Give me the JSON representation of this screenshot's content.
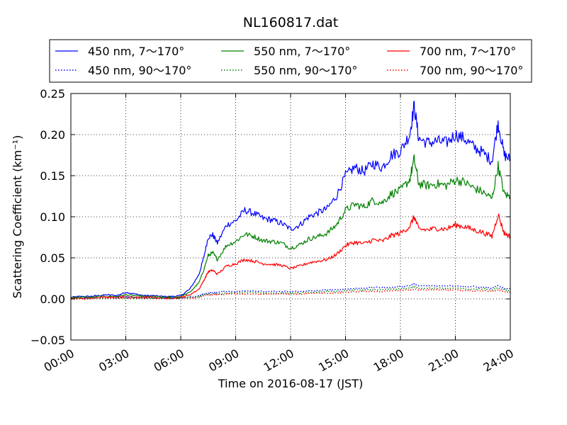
{
  "chart_data": {
    "type": "line",
    "title": "NL160817.dat",
    "xlabel": "Time on 2016-08-17 (JST)",
    "ylabel": "Scattering Coefficient (km⁻¹)",
    "xlim": [
      "2016-08-17 00:00",
      "2016-08-18 00:00"
    ],
    "ylim": [
      -0.05,
      0.25
    ],
    "xticks": [
      "00:00",
      "03:00",
      "06:00",
      "09:00",
      "12:00",
      "15:00",
      "18:00",
      "21:00",
      "24:00"
    ],
    "yticks": [
      "−0.05",
      "0.00",
      "0.05",
      "0.10",
      "0.15",
      "0.20",
      "0.25"
    ],
    "grid": true,
    "legend_position": "top",
    "x": [
      "00:00",
      "00:30",
      "01:00",
      "01:30",
      "02:00",
      "02:30",
      "03:00",
      "03:30",
      "04:00",
      "04:30",
      "05:00",
      "05:30",
      "06:00",
      "06:30",
      "07:00",
      "07:15",
      "07:30",
      "07:45",
      "08:00",
      "08:30",
      "09:00",
      "09:30",
      "10:00",
      "10:30",
      "11:00",
      "11:30",
      "12:00",
      "12:30",
      "13:00",
      "13:30",
      "14:00",
      "14:30",
      "15:00",
      "15:30",
      "16:00",
      "16:30",
      "17:00",
      "17:30",
      "18:00",
      "18:30",
      "18:45",
      "19:00",
      "19:30",
      "20:00",
      "20:30",
      "21:00",
      "21:30",
      "22:00",
      "22:30",
      "23:00",
      "23:20",
      "23:40",
      "24:00"
    ],
    "series": [
      {
        "name": "450 nm, 7～170°",
        "color": "#0000ff",
        "style": "solid",
        "values": [
          0.002,
          0.003,
          0.003,
          0.004,
          0.005,
          0.004,
          0.008,
          0.006,
          0.004,
          0.004,
          0.003,
          0.003,
          0.004,
          0.012,
          0.03,
          0.05,
          0.075,
          0.078,
          0.068,
          0.09,
          0.095,
          0.108,
          0.104,
          0.098,
          0.096,
          0.092,
          0.085,
          0.09,
          0.1,
          0.105,
          0.11,
          0.125,
          0.15,
          0.16,
          0.155,
          0.165,
          0.16,
          0.175,
          0.18,
          0.2,
          0.235,
          0.195,
          0.19,
          0.192,
          0.19,
          0.2,
          0.195,
          0.185,
          0.178,
          0.168,
          0.215,
          0.175,
          0.17
        ]
      },
      {
        "name": "550 nm, 7～170°",
        "color": "#008000",
        "style": "solid",
        "values": [
          0.002,
          0.002,
          0.002,
          0.003,
          0.003,
          0.003,
          0.005,
          0.004,
          0.003,
          0.003,
          0.002,
          0.002,
          0.003,
          0.008,
          0.02,
          0.035,
          0.053,
          0.056,
          0.048,
          0.065,
          0.07,
          0.079,
          0.076,
          0.071,
          0.07,
          0.068,
          0.062,
          0.066,
          0.073,
          0.076,
          0.08,
          0.09,
          0.108,
          0.115,
          0.112,
          0.12,
          0.117,
          0.128,
          0.132,
          0.145,
          0.17,
          0.14,
          0.138,
          0.14,
          0.138,
          0.145,
          0.142,
          0.135,
          0.13,
          0.122,
          0.162,
          0.128,
          0.124
        ]
      },
      {
        "name": "700 nm, 7～170°",
        "color": "#ff0000",
        "style": "solid",
        "values": [
          0.001,
          0.001,
          0.001,
          0.002,
          0.002,
          0.002,
          0.003,
          0.002,
          0.002,
          0.002,
          0.001,
          0.001,
          0.002,
          0.005,
          0.012,
          0.022,
          0.033,
          0.035,
          0.03,
          0.04,
          0.043,
          0.048,
          0.046,
          0.043,
          0.042,
          0.041,
          0.037,
          0.04,
          0.044,
          0.046,
          0.048,
          0.054,
          0.065,
          0.069,
          0.067,
          0.072,
          0.07,
          0.077,
          0.08,
          0.088,
          0.1,
          0.085,
          0.084,
          0.086,
          0.085,
          0.09,
          0.088,
          0.084,
          0.081,
          0.076,
          0.103,
          0.08,
          0.076
        ]
      },
      {
        "name": "450 nm, 90～170°",
        "color": "#0000ff",
        "style": "dotted",
        "values": [
          0.001,
          0.001,
          0.001,
          0.001,
          0.001,
          0.001,
          0.002,
          0.002,
          0.001,
          0.001,
          0.001,
          0.001,
          0.001,
          0.002,
          0.004,
          0.006,
          0.007,
          0.008,
          0.008,
          0.009,
          0.009,
          0.01,
          0.01,
          0.009,
          0.009,
          0.009,
          0.009,
          0.009,
          0.01,
          0.01,
          0.011,
          0.011,
          0.012,
          0.013,
          0.013,
          0.014,
          0.014,
          0.014,
          0.015,
          0.016,
          0.018,
          0.016,
          0.016,
          0.016,
          0.016,
          0.016,
          0.015,
          0.015,
          0.014,
          0.013,
          0.016,
          0.013,
          0.012
        ]
      },
      {
        "name": "550 nm, 90～170°",
        "color": "#008000",
        "style": "dotted",
        "values": [
          0.001,
          0.001,
          0.001,
          0.001,
          0.001,
          0.001,
          0.001,
          0.001,
          0.001,
          0.001,
          0.001,
          0.001,
          0.001,
          0.002,
          0.003,
          0.005,
          0.006,
          0.006,
          0.006,
          0.007,
          0.007,
          0.008,
          0.008,
          0.007,
          0.007,
          0.007,
          0.007,
          0.007,
          0.008,
          0.008,
          0.009,
          0.009,
          0.01,
          0.011,
          0.011,
          0.011,
          0.011,
          0.012,
          0.012,
          0.013,
          0.015,
          0.013,
          0.013,
          0.013,
          0.013,
          0.013,
          0.012,
          0.012,
          0.012,
          0.011,
          0.013,
          0.011,
          0.01
        ]
      },
      {
        "name": "700 nm, 90～170°",
        "color": "#ff0000",
        "style": "dotted",
        "values": [
          0.0,
          0.0,
          0.0,
          0.001,
          0.001,
          0.001,
          0.001,
          0.001,
          0.001,
          0.001,
          0.0,
          0.0,
          0.001,
          0.001,
          0.002,
          0.004,
          0.005,
          0.005,
          0.005,
          0.006,
          0.006,
          0.006,
          0.006,
          0.006,
          0.006,
          0.006,
          0.006,
          0.006,
          0.007,
          0.007,
          0.007,
          0.007,
          0.008,
          0.009,
          0.009,
          0.009,
          0.009,
          0.01,
          0.01,
          0.011,
          0.012,
          0.011,
          0.011,
          0.011,
          0.011,
          0.011,
          0.01,
          0.01,
          0.01,
          0.009,
          0.011,
          0.009,
          0.008
        ]
      }
    ]
  }
}
